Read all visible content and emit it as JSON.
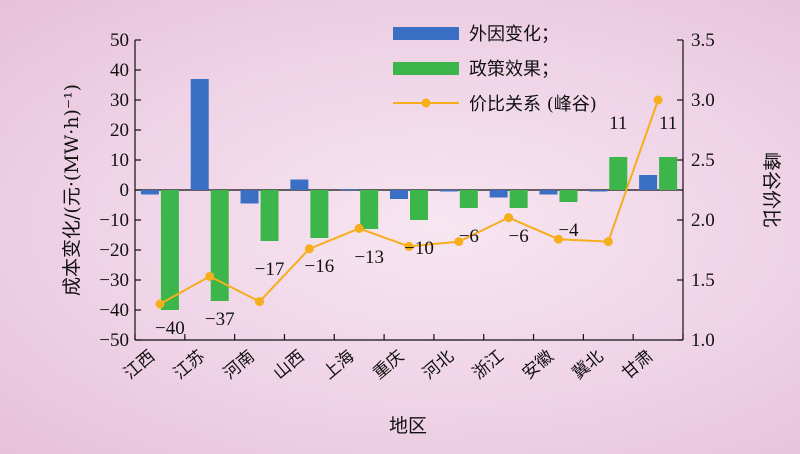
{
  "chart_data": {
    "type": "bar",
    "categories": [
      "江西",
      "江苏",
      "河南",
      "山西",
      "上海",
      "重庆",
      "河北",
      "浙江",
      "安徽",
      "冀北",
      "甘肃"
    ],
    "series": [
      {
        "name": "外因变化；",
        "type": "bar",
        "axis": "left",
        "color": "#3a6fc4",
        "values": [
          -1.5,
          37,
          -4.5,
          3.5,
          0.3,
          -3,
          -0.5,
          -2.5,
          -1.5,
          -0.5,
          5
        ]
      },
      {
        "name": "政策效果；",
        "type": "bar",
        "axis": "left",
        "color": "#3cb54a",
        "values": [
          -40,
          -37,
          -17,
          -16,
          -13,
          -10,
          -6,
          -6,
          -4,
          11,
          11
        ]
      },
      {
        "name": "价比关系 (峰谷)",
        "type": "line",
        "axis": "right",
        "color": "#f5ae1c",
        "values": [
          1.3,
          1.53,
          1.32,
          1.76,
          1.93,
          1.78,
          1.82,
          2.02,
          1.84,
          1.82,
          3.0
        ]
      }
    ],
    "data_labels": [
      "−40",
      "−37",
      "−17",
      "−16",
      "−13",
      "−10",
      "−6",
      "−6",
      "−4",
      "11",
      "11"
    ],
    "xlabel": "地区",
    "ylabel": "成本变化/(元·(MW·h)⁻¹)",
    "y2label": "峰谷价比",
    "ylim": [
      -50,
      50
    ],
    "y_ticks": [
      50,
      40,
      30,
      20,
      10,
      0,
      -10,
      -20,
      -30,
      -40,
      -50
    ],
    "y2lim": [
      1.0,
      3.5
    ],
    "y2_ticks": [
      "3.5",
      "3.0",
      "2.5",
      "2.0",
      "1.5",
      "1.0"
    ],
    "grid": false,
    "legend_position": "top-right"
  }
}
